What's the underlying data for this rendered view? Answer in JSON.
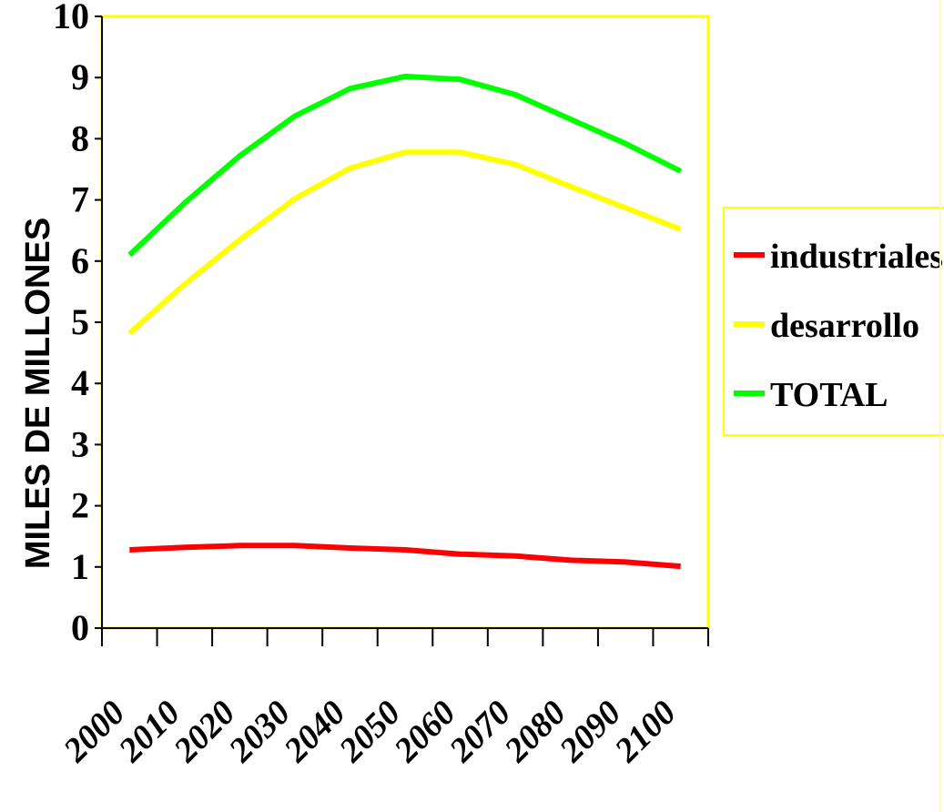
{
  "chart_data": {
    "type": "line",
    "x": [
      "2000",
      "2010",
      "2020",
      "2030",
      "2040",
      "2050",
      "2060",
      "2070",
      "2080",
      "2090",
      "2100"
    ],
    "series": [
      {
        "name": "industriales",
        "color": "#ff0000",
        "values": [
          1.28,
          1.32,
          1.35,
          1.35,
          1.31,
          1.28,
          1.21,
          1.18,
          1.11,
          1.08,
          1.01
        ]
      },
      {
        "name": "desarrollo",
        "color": "#ffff00",
        "values": [
          4.82,
          5.62,
          6.35,
          7.02,
          7.52,
          7.78,
          7.78,
          7.58,
          7.22,
          6.87,
          6.52
        ]
      },
      {
        "name": "TOTAL",
        "color": "#00ff00",
        "values": [
          6.1,
          6.95,
          7.72,
          8.37,
          8.82,
          9.02,
          8.97,
          8.72,
          8.32,
          7.92,
          7.47
        ]
      }
    ],
    "ylabel": "MILES DE MILLONES",
    "xlabel": "",
    "ylim": [
      0,
      10
    ],
    "yticks": [
      "0",
      "1",
      "2",
      "3",
      "4",
      "5",
      "6",
      "7",
      "8",
      "9",
      "10"
    ],
    "grid": false,
    "legend": "right",
    "plot_border_color": "#ffff00"
  }
}
